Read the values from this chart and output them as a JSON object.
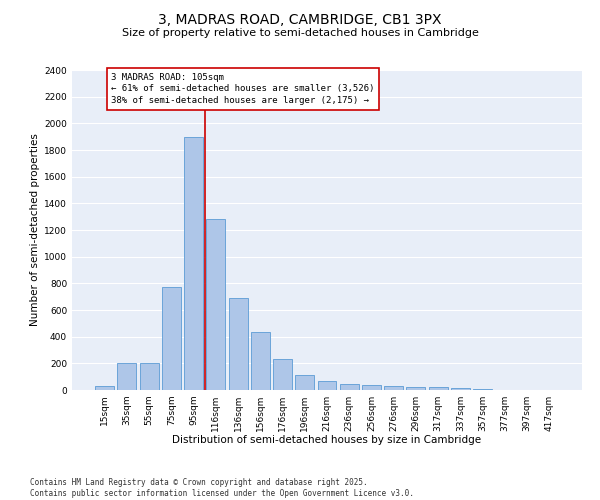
{
  "title_line1": "3, MADRAS ROAD, CAMBRIDGE, CB1 3PX",
  "title_line2": "Size of property relative to semi-detached houses in Cambridge",
  "xlabel": "Distribution of semi-detached houses by size in Cambridge",
  "ylabel": "Number of semi-detached properties",
  "categories": [
    "15sqm",
    "35sqm",
    "55sqm",
    "75sqm",
    "95sqm",
    "116sqm",
    "136sqm",
    "156sqm",
    "176sqm",
    "196sqm",
    "216sqm",
    "236sqm",
    "256sqm",
    "276sqm",
    "296sqm",
    "317sqm",
    "337sqm",
    "357sqm",
    "377sqm",
    "397sqm",
    "417sqm"
  ],
  "values": [
    28,
    200,
    200,
    770,
    1900,
    1280,
    690,
    435,
    230,
    110,
    65,
    45,
    35,
    28,
    20,
    22,
    18,
    5,
    2,
    1,
    1
  ],
  "bar_color": "#aec6e8",
  "bar_edge_color": "#5b9bd5",
  "vline_color": "#cc0000",
  "box_text_line1": "3 MADRAS ROAD: 105sqm",
  "box_text_line2": "← 61% of semi-detached houses are smaller (3,526)",
  "box_text_line3": "38% of semi-detached houses are larger (2,175) →",
  "box_color": "#cc0000",
  "box_fill": "white",
  "annotation_fontsize": 6.5,
  "footer_line1": "Contains HM Land Registry data © Crown copyright and database right 2025.",
  "footer_line2": "Contains public sector information licensed under the Open Government Licence v3.0.",
  "plot_background": "#e8eef8",
  "ylim": [
    0,
    2400
  ],
  "yticks": [
    0,
    200,
    400,
    600,
    800,
    1000,
    1200,
    1400,
    1600,
    1800,
    2000,
    2200,
    2400
  ],
  "grid_color": "white",
  "title_fontsize": 10,
  "subtitle_fontsize": 8,
  "axis_label_fontsize": 7.5,
  "tick_fontsize": 6.5,
  "footer_fontsize": 5.5
}
